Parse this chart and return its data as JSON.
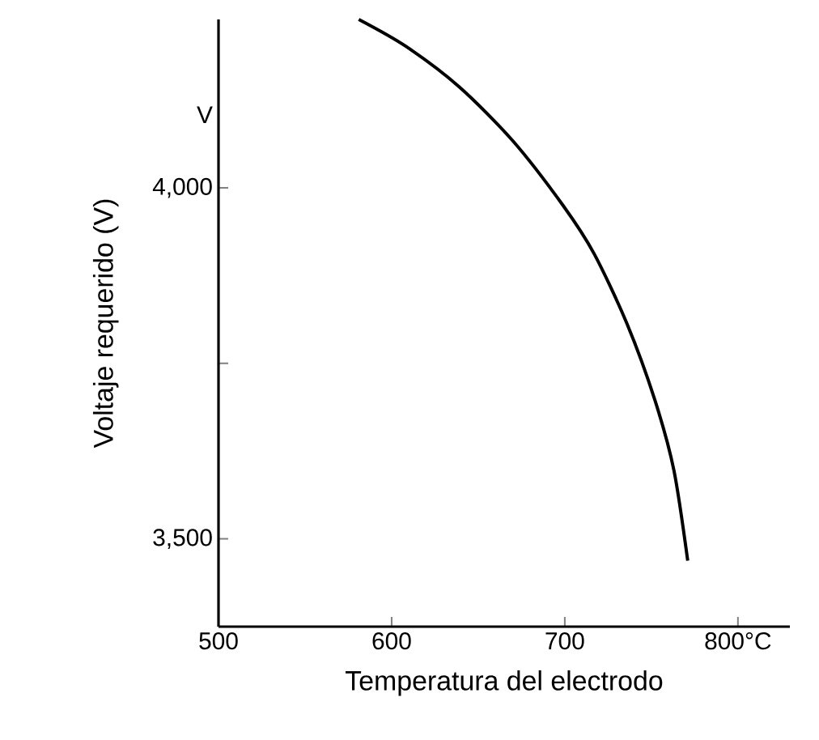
{
  "chart_data": {
    "type": "line",
    "xlabel": "Temperatura del electrodo",
    "ylabel": "Voltaje requerido (V)",
    "annotations": [
      "V"
    ],
    "xlim": [
      500,
      830
    ],
    "ylim": [
      3375,
      4240
    ],
    "xticks": [
      500,
      600,
      700,
      {
        "value": 800,
        "label": "800°C"
      }
    ],
    "yticks": [
      {
        "value": 3500,
        "label": "3,500"
      },
      {
        "value": 3750,
        "label": null
      },
      {
        "value": 4000,
        "label": "4,000"
      }
    ],
    "marker": "none",
    "line_style": "solid",
    "series": [
      {
        "color": "#000000",
        "x": [
          581,
          608,
          639,
          670,
          699,
          717,
          736,
          752,
          763,
          771
        ],
        "values": [
          4240,
          4202,
          4144,
          4067,
          3975,
          3906,
          3806,
          3698,
          3598,
          3469
        ]
      }
    ]
  }
}
